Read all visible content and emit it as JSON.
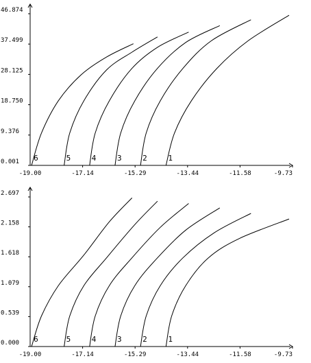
{
  "chart_data": [
    {
      "type": "line",
      "xlim": [
        -19.0,
        -9.73
      ],
      "ylim": [
        0.001,
        46.874
      ],
      "x_ticks": [
        "-19.00",
        "-17.14",
        "-15.29",
        "-13.44",
        "-11.58",
        "-9.73"
      ],
      "y_ticks": [
        "0.001",
        "9.376",
        "18.750",
        "28.125",
        "37.499",
        "46.874"
      ],
      "grid": false,
      "series": [
        {
          "name": "1",
          "x": [
            -14.2,
            -13.9,
            -13.3,
            -12.4,
            -11.3,
            -9.85
          ],
          "y": [
            0.001,
            10.0,
            20.0,
            30.0,
            38.5,
            46.4
          ]
        },
        {
          "name": "2",
          "x": [
            -15.1,
            -14.9,
            -14.4,
            -13.6,
            -12.6,
            -11.2
          ],
          "y": [
            0.001,
            10.0,
            20.0,
            30.0,
            38.5,
            45.0
          ]
        },
        {
          "name": "3",
          "x": [
            -16.0,
            -15.8,
            -15.3,
            -14.5,
            -13.5,
            -12.3
          ],
          "y": [
            0.001,
            10.0,
            20.0,
            30.0,
            38.0,
            43.2
          ]
        },
        {
          "name": "4",
          "x": [
            -16.9,
            -16.7,
            -16.2,
            -15.4,
            -14.5,
            -13.4
          ],
          "y": [
            0.001,
            10.0,
            20.0,
            30.0,
            36.5,
            41.2
          ]
        },
        {
          "name": "5",
          "x": [
            -17.8,
            -17.6,
            -17.1,
            -16.3,
            -15.4,
            -14.5
          ],
          "y": [
            0.001,
            10.0,
            20.0,
            29.5,
            35.0,
            39.7
          ]
        },
        {
          "name": "6",
          "x": [
            -18.95,
            -18.6,
            -18.0,
            -17.2,
            -16.3,
            -15.35
          ],
          "y": [
            0.001,
            10.0,
            20.0,
            28.0,
            33.5,
            37.6
          ]
        }
      ]
    },
    {
      "type": "line",
      "xlim": [
        -19.0,
        -9.73
      ],
      "ylim": [
        0.0,
        2.697
      ],
      "x_ticks": [
        "-19.00",
        "-17.14",
        "-15.29",
        "-13.44",
        "-11.58",
        "-9.73"
      ],
      "y_ticks": [
        "0.000",
        "0.539",
        "1.079",
        "1.618",
        "2.158",
        "2.697"
      ],
      "grid": false,
      "series": [
        {
          "name": "1",
          "x": [
            -14.2,
            -14.0,
            -13.5,
            -12.7,
            -11.6,
            -9.85
          ],
          "y": [
            0.0,
            0.55,
            1.1,
            1.6,
            1.95,
            2.3
          ]
        },
        {
          "name": "2",
          "x": [
            -15.1,
            -14.9,
            -14.4,
            -13.6,
            -12.5,
            -11.2
          ],
          "y": [
            0.0,
            0.55,
            1.1,
            1.6,
            2.05,
            2.4
          ]
        },
        {
          "name": "3",
          "x": [
            -16.0,
            -15.8,
            -15.3,
            -14.5,
            -13.5,
            -12.3
          ],
          "y": [
            0.0,
            0.55,
            1.1,
            1.6,
            2.1,
            2.5
          ]
        },
        {
          "name": "4",
          "x": [
            -16.9,
            -16.7,
            -16.2,
            -15.4,
            -14.4,
            -13.4
          ],
          "y": [
            0.0,
            0.55,
            1.1,
            1.6,
            2.15,
            2.58
          ]
        },
        {
          "name": "5",
          "x": [
            -17.8,
            -17.6,
            -17.1,
            -16.3,
            -15.3,
            -14.5
          ],
          "y": [
            0.0,
            0.55,
            1.1,
            1.6,
            2.2,
            2.62
          ]
        },
        {
          "name": "6",
          "x": [
            -18.95,
            -18.6,
            -18.0,
            -17.1,
            -16.2,
            -15.4
          ],
          "y": [
            0.0,
            0.55,
            1.1,
            1.65,
            2.25,
            2.68
          ]
        }
      ]
    }
  ]
}
